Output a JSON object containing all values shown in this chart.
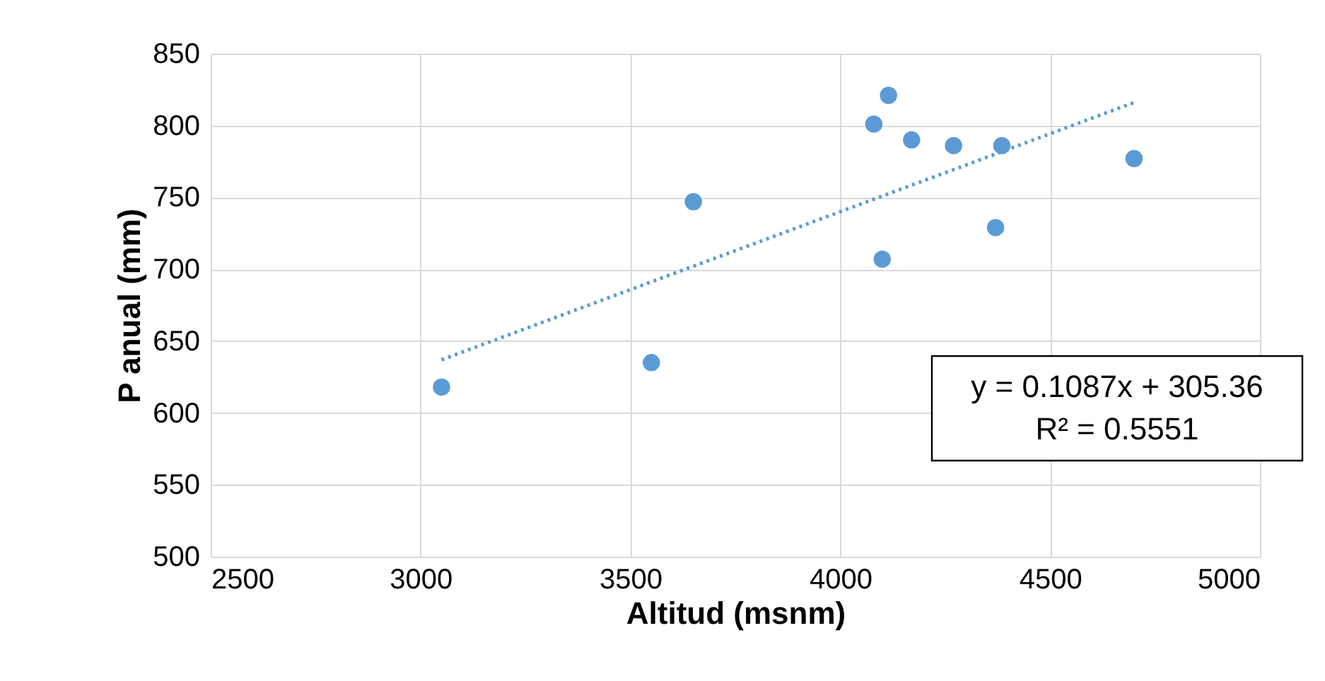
{
  "chart_data": {
    "type": "scatter",
    "xlabel": "Altitud (msnm)",
    "ylabel": "P anual (mm)",
    "annotations": [
      "y = 0.1087x + 305.36",
      "R² = 0.5551"
    ],
    "series": [
      {
        "color": "#5b9bd5",
        "marker": "circle",
        "x": [
          3050,
          3550,
          3650,
          4080,
          4115,
          4100,
          4170,
          4270,
          4385,
          4370,
          4700
        ],
        "values": [
          618,
          635,
          747,
          801,
          821,
          707,
          790,
          786,
          786,
          729,
          777
        ]
      },
      {
        "type": "line",
        "color": "#5b9bd5",
        "line_style": "dotted",
        "x": [
          3050,
          4700
        ],
        "values": [
          637,
          816
        ]
      }
    ],
    "xlim": [
      2500,
      5000
    ],
    "xticks": [
      2500,
      3000,
      3500,
      4000,
      4500,
      5000
    ],
    "ylim": [
      500,
      850
    ],
    "yticks": [
      500,
      550,
      600,
      650,
      700,
      750,
      800,
      850
    ],
    "grid": true
  }
}
